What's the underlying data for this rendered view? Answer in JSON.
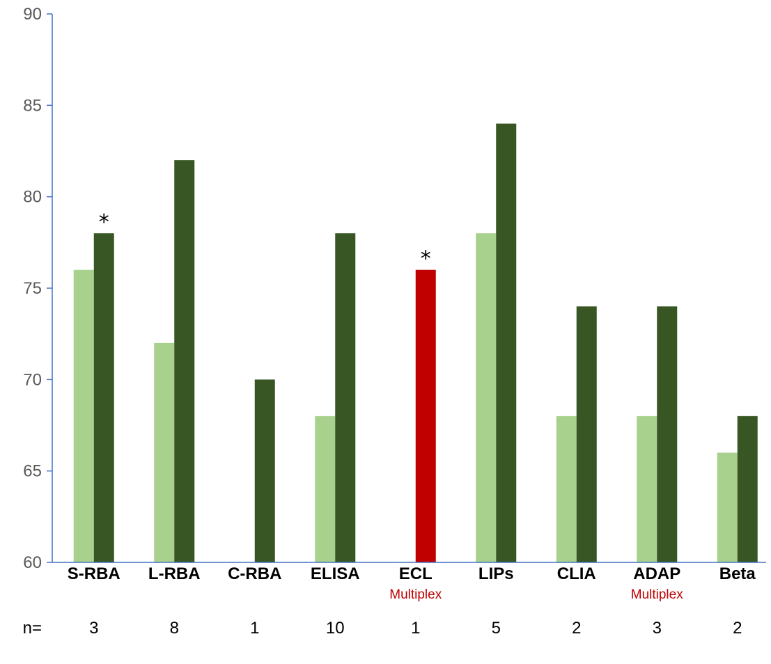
{
  "chart_data": {
    "type": "bar",
    "categories": [
      "S-RBA",
      "L-RBA",
      "C-RBA",
      "ELISA",
      "ECL",
      "LIPs",
      "CLIA",
      "ADAP",
      "Beta"
    ],
    "category_sublabels": [
      "",
      "",
      "",
      "",
      "Multiplex",
      "",
      "",
      "Multiplex",
      ""
    ],
    "series": [
      {
        "values": [
          76,
          72,
          null,
          68,
          null,
          78,
          68,
          68,
          66
        ]
      },
      {
        "values": [
          78,
          82,
          70,
          78,
          76,
          84,
          74,
          74,
          68
        ]
      }
    ],
    "series_colors": [
      "#a9d18e",
      "#375623"
    ],
    "highlight": {
      "category_index": 4,
      "series_index": 1,
      "color": "#c00000"
    },
    "asterisks": [
      {
        "category_index": 0,
        "series_index": 1,
        "text": "*"
      },
      {
        "category_index": 4,
        "series_index": 1,
        "text": "*"
      }
    ],
    "ylim": [
      60,
      90
    ],
    "yticks": [
      60,
      65,
      70,
      75,
      80,
      85,
      90
    ],
    "n_prefix": "n=",
    "n_values": [
      "3",
      "8",
      "1",
      "10",
      "1",
      "5",
      "2",
      "3",
      "2"
    ],
    "axis_color": "#4472c4",
    "sublabel_color": "#c00000",
    "grid": false,
    "title": "",
    "xlabel": "",
    "ylabel": ""
  }
}
